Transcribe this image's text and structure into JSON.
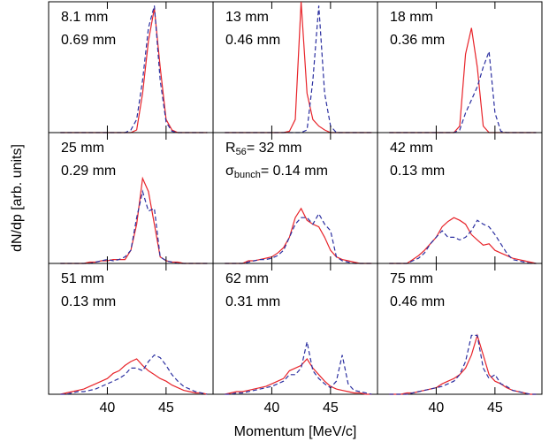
{
  "figure": {
    "xlabel": "Momentum  [MeV/c]",
    "ylabel": "dN/dp  [arb. units]"
  },
  "chart_data": [
    {
      "type": "line",
      "labels": [
        [
          {
            "text": "8.1 mm"
          }
        ],
        [
          {
            "text": "0.69 mm"
          }
        ]
      ],
      "x": [
        36,
        36.5,
        37,
        37.5,
        38,
        38.5,
        39,
        39.5,
        40,
        40.5,
        41,
        41.5,
        42,
        42.5,
        43,
        43.5,
        44,
        44.5,
        45,
        45.5,
        46,
        46.5,
        47,
        47.5,
        48,
        48.5
      ],
      "xlim": [
        35,
        49
      ],
      "ylim": [
        0,
        1
      ],
      "xticks": [
        40,
        45
      ],
      "series": [
        {
          "color": "#e8242a",
          "dash": false,
          "values": [
            0,
            0,
            0,
            0,
            0,
            0,
            0,
            0,
            0,
            0,
            0,
            0,
            0,
            0.02,
            0.3,
            0.7,
            0.95,
            0.5,
            0.1,
            0.02,
            0,
            0,
            0,
            0,
            0,
            0
          ]
        },
        {
          "color": "#2b2fa0",
          "dash": true,
          "values": [
            0,
            0,
            0,
            0,
            0,
            0,
            0,
            0,
            0,
            0,
            0,
            0,
            0.02,
            0.1,
            0.4,
            0.8,
            0.97,
            0.4,
            0.08,
            0.01,
            0,
            0,
            0,
            0,
            0,
            0
          ]
        }
      ]
    },
    {
      "type": "line",
      "labels": [
        [
          {
            "text": "13 mm"
          }
        ],
        [
          {
            "text": "0.46 mm"
          }
        ]
      ],
      "x": [
        36,
        36.5,
        37,
        37.5,
        38,
        38.5,
        39,
        39.5,
        40,
        40.5,
        41,
        41.5,
        42,
        42.5,
        43,
        43.5,
        44,
        44.5,
        45,
        45.5,
        46,
        46.5,
        47,
        47.5,
        48,
        48.5
      ],
      "xlim": [
        35,
        49
      ],
      "ylim": [
        0,
        1
      ],
      "xticks": [
        40,
        45
      ],
      "series": [
        {
          "color": "#e8242a",
          "dash": false,
          "values": [
            0,
            0,
            0,
            0,
            0,
            0,
            0,
            0,
            0,
            0,
            0,
            0.01,
            0.1,
            1.0,
            0.3,
            0.1,
            0.05,
            0.02,
            0,
            0,
            0,
            0,
            0,
            0,
            0,
            0
          ]
        },
        {
          "color": "#2b2fa0",
          "dash": true,
          "values": [
            0,
            0,
            0,
            0,
            0,
            0,
            0,
            0,
            0,
            0,
            0,
            0,
            0,
            0,
            0.02,
            0.4,
            0.97,
            0.3,
            0.05,
            0,
            0,
            0,
            0,
            0,
            0,
            0
          ]
        }
      ]
    },
    {
      "type": "line",
      "labels": [
        [
          {
            "text": "18 mm"
          }
        ],
        [
          {
            "text": "0.36 mm"
          }
        ]
      ],
      "x": [
        36,
        36.5,
        37,
        37.5,
        38,
        38.5,
        39,
        39.5,
        40,
        40.5,
        41,
        41.5,
        42,
        42.5,
        43,
        43.5,
        44,
        44.5,
        45,
        45.5,
        46,
        46.5,
        47,
        47.5,
        48,
        48.5
      ],
      "xlim": [
        35,
        49
      ],
      "ylim": [
        0,
        1
      ],
      "xticks": [
        40,
        45
      ],
      "series": [
        {
          "color": "#e8242a",
          "dash": false,
          "values": [
            0,
            0,
            0,
            0,
            0,
            0,
            0,
            0,
            0,
            0,
            0,
            0,
            0.05,
            0.6,
            0.8,
            0.5,
            0.05,
            0,
            0,
            0,
            0,
            0,
            0,
            0,
            0,
            0
          ]
        },
        {
          "color": "#2b2fa0",
          "dash": true,
          "values": [
            0,
            0,
            0,
            0,
            0,
            0,
            0,
            0,
            0,
            0,
            0,
            0,
            0.02,
            0.15,
            0.25,
            0.35,
            0.5,
            0.62,
            0.15,
            0.01,
            0,
            0,
            0,
            0,
            0,
            0
          ]
        }
      ]
    },
    {
      "type": "line",
      "labels": [
        [
          {
            "text": "25 mm"
          }
        ],
        [
          {
            "text": "0.29 mm"
          }
        ]
      ],
      "x": [
        36,
        36.5,
        37,
        37.5,
        38,
        38.5,
        39,
        39.5,
        40,
        40.5,
        41,
        41.5,
        42,
        42.5,
        43,
        43.5,
        44,
        44.5,
        45,
        45.5,
        46,
        46.5,
        47,
        47.5,
        48,
        48.5
      ],
      "xlim": [
        35,
        49
      ],
      "ylim": [
        0,
        1
      ],
      "xticks": [
        40,
        45
      ],
      "series": [
        {
          "color": "#e8242a",
          "dash": false,
          "values": [
            0,
            0,
            0,
            0,
            0,
            0.01,
            0.01,
            0.02,
            0.02,
            0.03,
            0.03,
            0.03,
            0.1,
            0.3,
            0.65,
            0.55,
            0.3,
            0.05,
            0.02,
            0.01,
            0.01,
            0,
            0,
            0,
            0,
            0
          ]
        },
        {
          "color": "#2b2fa0",
          "dash": true,
          "values": [
            0,
            0,
            0,
            0,
            0,
            0,
            0.01,
            0.02,
            0.03,
            0.02,
            0.03,
            0.05,
            0.1,
            0.35,
            0.55,
            0.4,
            0.42,
            0.05,
            0.02,
            0.01,
            0,
            0,
            0,
            0,
            0,
            0
          ]
        }
      ]
    },
    {
      "type": "line",
      "labels": [
        [
          {
            "text": "R"
          },
          {
            "text": "56",
            "sub": true
          },
          {
            "text": "= 32 mm"
          }
        ],
        [
          {
            "text": "σ"
          },
          {
            "text": "bunch",
            "sub": true
          },
          {
            "text": "= 0.14 mm"
          }
        ]
      ],
      "x": [
        36,
        36.5,
        37,
        37.5,
        38,
        38.5,
        39,
        39.5,
        40,
        40.5,
        41,
        41.5,
        42,
        42.5,
        43,
        43.5,
        44,
        44.5,
        45,
        45.5,
        46,
        46.5,
        47,
        47.5,
        48,
        48.5
      ],
      "xlim": [
        35,
        49
      ],
      "ylim": [
        0,
        1
      ],
      "xticks": [
        40,
        45
      ],
      "series": [
        {
          "color": "#e8242a",
          "dash": false,
          "values": [
            0,
            0,
            0,
            0,
            0.02,
            0.02,
            0.03,
            0.04,
            0.05,
            0.08,
            0.12,
            0.2,
            0.35,
            0.42,
            0.33,
            0.3,
            0.28,
            0.2,
            0.1,
            0.05,
            0.03,
            0.02,
            0.01,
            0,
            0,
            0
          ]
        },
        {
          "color": "#2b2fa0",
          "dash": true,
          "values": [
            0,
            0,
            0,
            0,
            0.01,
            0.02,
            0.03,
            0.03,
            0.04,
            0.06,
            0.1,
            0.2,
            0.3,
            0.35,
            0.35,
            0.3,
            0.38,
            0.3,
            0.25,
            0.05,
            0.02,
            0.01,
            0,
            0,
            0,
            0
          ]
        }
      ]
    },
    {
      "type": "line",
      "labels": [
        [
          {
            "text": "42 mm"
          }
        ],
        [
          {
            "text": "0.13 mm"
          }
        ]
      ],
      "x": [
        36,
        36.5,
        37,
        37.5,
        38,
        38.5,
        39,
        39.5,
        40,
        40.5,
        41,
        41.5,
        42,
        42.5,
        43,
        43.5,
        44,
        44.5,
        45,
        45.5,
        46,
        46.5,
        47,
        47.5,
        48,
        48.5
      ],
      "xlim": [
        35,
        49
      ],
      "ylim": [
        0,
        1
      ],
      "xticks": [
        40,
        45
      ],
      "series": [
        {
          "color": "#e8242a",
          "dash": false,
          "values": [
            0,
            0,
            0,
            0,
            0.03,
            0.06,
            0.1,
            0.15,
            0.2,
            0.28,
            0.32,
            0.35,
            0.33,
            0.3,
            0.22,
            0.18,
            0.14,
            0.15,
            0.1,
            0.08,
            0.06,
            0.04,
            0.03,
            0.02,
            0.01,
            0
          ]
        },
        {
          "color": "#2b2fa0",
          "dash": true,
          "values": [
            0,
            0,
            0,
            0,
            0.02,
            0.04,
            0.08,
            0.15,
            0.2,
            0.25,
            0.2,
            0.2,
            0.18,
            0.2,
            0.25,
            0.33,
            0.3,
            0.28,
            0.22,
            0.15,
            0.08,
            0.03,
            0.02,
            0.01,
            0,
            0
          ]
        }
      ]
    },
    {
      "type": "line",
      "labels": [
        [
          {
            "text": "51 mm"
          }
        ],
        [
          {
            "text": "0.13 mm"
          }
        ]
      ],
      "x": [
        36,
        36.5,
        37,
        37.5,
        38,
        38.5,
        39,
        39.5,
        40,
        40.5,
        41,
        41.5,
        42,
        42.5,
        43,
        43.5,
        44,
        44.5,
        45,
        45.5,
        46,
        46.5,
        47,
        47.5,
        48,
        48.5
      ],
      "xlim": [
        35,
        49
      ],
      "ylim": [
        0,
        1
      ],
      "xticks": [
        40,
        45
      ],
      "series": [
        {
          "color": "#e8242a",
          "dash": false,
          "values": [
            0,
            0.01,
            0.02,
            0.03,
            0.04,
            0.06,
            0.08,
            0.1,
            0.12,
            0.16,
            0.18,
            0.22,
            0.25,
            0.27,
            0.22,
            0.18,
            0.15,
            0.12,
            0.1,
            0.07,
            0.05,
            0.03,
            0.02,
            0.01,
            0.01,
            0
          ]
        },
        {
          "color": "#2b2fa0",
          "dash": true,
          "values": [
            0,
            0,
            0.01,
            0.02,
            0.02,
            0.03,
            0.04,
            0.06,
            0.08,
            0.1,
            0.12,
            0.15,
            0.2,
            0.2,
            0.18,
            0.25,
            0.3,
            0.28,
            0.22,
            0.15,
            0.1,
            0.06,
            0.04,
            0.02,
            0.01,
            0
          ]
        }
      ]
    },
    {
      "type": "line",
      "labels": [
        [
          {
            "text": "62 mm"
          }
        ],
        [
          {
            "text": "0.31 mm"
          }
        ]
      ],
      "x": [
        36,
        36.5,
        37,
        37.5,
        38,
        38.5,
        39,
        39.5,
        40,
        40.5,
        41,
        41.5,
        42,
        42.5,
        43,
        43.5,
        44,
        44.5,
        45,
        45.5,
        46,
        46.5,
        47,
        47.5,
        48,
        48.5
      ],
      "xlim": [
        35,
        49
      ],
      "ylim": [
        0,
        1
      ],
      "xticks": [
        40,
        45
      ],
      "series": [
        {
          "color": "#e8242a",
          "dash": false,
          "values": [
            0,
            0.01,
            0.02,
            0.02,
            0.03,
            0.04,
            0.05,
            0.06,
            0.08,
            0.1,
            0.12,
            0.18,
            0.2,
            0.22,
            0.27,
            0.2,
            0.15,
            0.1,
            0.06,
            0.04,
            0.03,
            0.02,
            0.01,
            0.01,
            0,
            0
          ]
        },
        {
          "color": "#2b2fa0",
          "dash": true,
          "values": [
            0,
            0,
            0.01,
            0.01,
            0.02,
            0.03,
            0.04,
            0.05,
            0.06,
            0.08,
            0.1,
            0.15,
            0.15,
            0.2,
            0.4,
            0.18,
            0.12,
            0.08,
            0.05,
            0.1,
            0.3,
            0.08,
            0.03,
            0.02,
            0.01,
            0
          ]
        }
      ]
    },
    {
      "type": "line",
      "labels": [
        [
          {
            "text": "75 mm"
          }
        ],
        [
          {
            "text": "0.46 mm"
          }
        ]
      ],
      "x": [
        36,
        36.5,
        37,
        37.5,
        38,
        38.5,
        39,
        39.5,
        40,
        40.5,
        41,
        41.5,
        42,
        42.5,
        43,
        43.5,
        44,
        44.5,
        45,
        45.5,
        46,
        46.5,
        47,
        47.5,
        48,
        48.5
      ],
      "xlim": [
        35,
        49
      ],
      "ylim": [
        0,
        1
      ],
      "xticks": [
        40,
        45
      ],
      "series": [
        {
          "color": "#e8242a",
          "dash": false,
          "values": [
            0,
            0,
            0,
            0.01,
            0.01,
            0.02,
            0.03,
            0.04,
            0.05,
            0.08,
            0.1,
            0.12,
            0.15,
            0.2,
            0.3,
            0.45,
            0.3,
            0.15,
            0.1,
            0.08,
            0.05,
            0.03,
            0.02,
            0.01,
            0,
            0
          ]
        },
        {
          "color": "#2b2fa0",
          "dash": true,
          "values": [
            0,
            0,
            0,
            0,
            0.01,
            0.02,
            0.03,
            0.04,
            0.05,
            0.06,
            0.08,
            0.1,
            0.15,
            0.25,
            0.45,
            0.45,
            0.2,
            0.12,
            0.15,
            0.08,
            0.06,
            0.03,
            0.02,
            0.01,
            0,
            0
          ]
        }
      ]
    }
  ]
}
